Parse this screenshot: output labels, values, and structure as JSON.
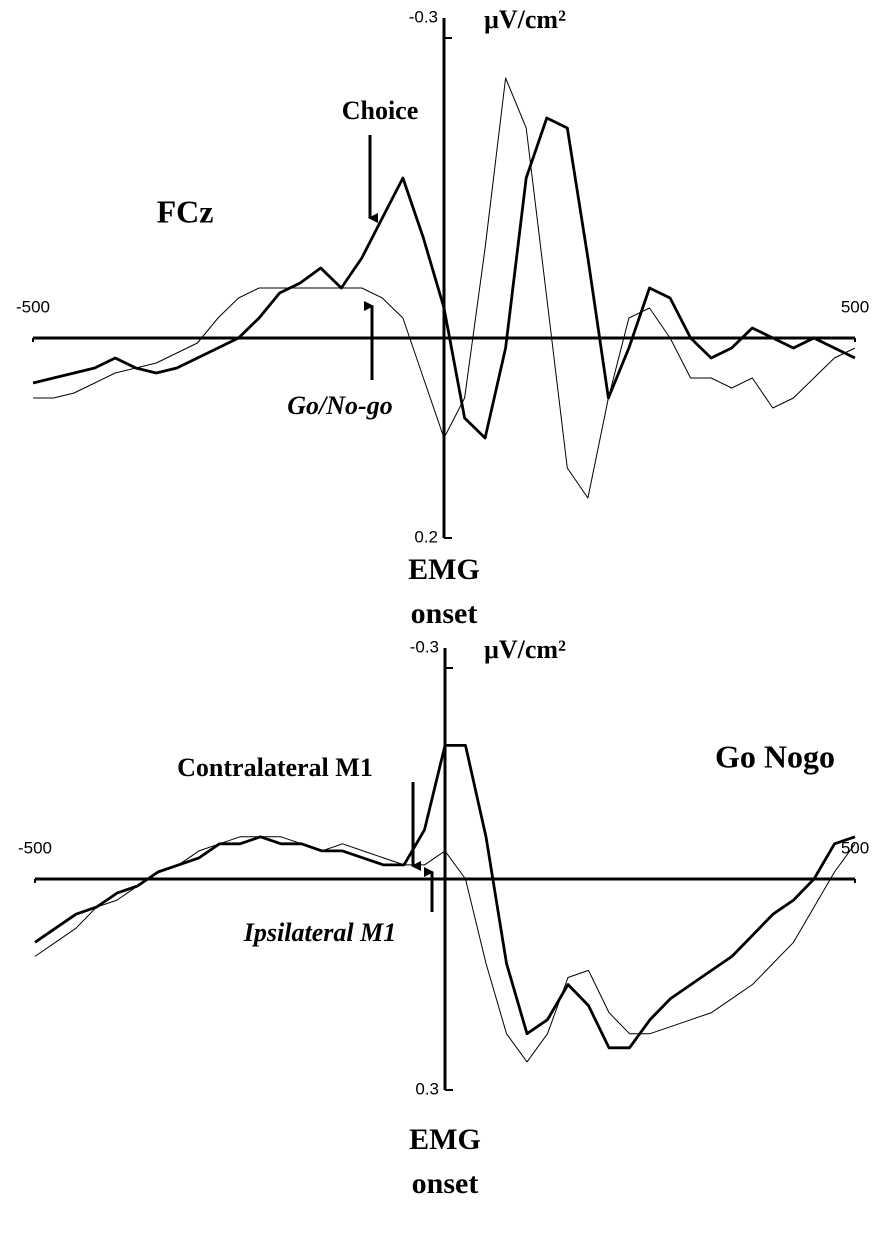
{
  "chart_data": [
    {
      "type": "line",
      "title": "FCz",
      "y_label": "μV/cm²",
      "x_label": "EMG onset",
      "xlim": [
        -500,
        500
      ],
      "xticks": [
        -500,
        500
      ],
      "ylim": [
        -0.3,
        0.2
      ],
      "yticks": [
        -0.3,
        0.2
      ],
      "y_inverted": true,
      "x": [
        -500,
        -475,
        -450,
        -425,
        -400,
        -375,
        -350,
        -325,
        -300,
        -275,
        -250,
        -225,
        -200,
        -175,
        -150,
        -125,
        -100,
        -75,
        -50,
        -25,
        0,
        25,
        50,
        75,
        100,
        125,
        150,
        175,
        200,
        225,
        250,
        275,
        300,
        325,
        350,
        375,
        400,
        425,
        450,
        475,
        500
      ],
      "series": [
        {
          "name": "Choice",
          "color": "#000000",
          "values": [
            0.045,
            0.04,
            0.035,
            0.03,
            0.02,
            0.03,
            0.035,
            0.03,
            0.02,
            0.01,
            0,
            -0.02,
            -0.045,
            -0.055,
            -0.07,
            -0.05,
            -0.08,
            -0.12,
            -0.16,
            -0.1,
            -0.03,
            0.08,
            0.1,
            0.01,
            -0.16,
            -0.22,
            -0.21,
            -0.08,
            0.06,
            0.01,
            -0.05,
            -0.04,
            0,
            0.02,
            0.01,
            -0.01,
            0,
            0.01,
            0,
            0.01,
            0.02
          ]
        },
        {
          "name": "Go/No-go",
          "color": "#000000",
          "values": [
            0.06,
            0.06,
            0.055,
            0.045,
            0.035,
            0.03,
            0.025,
            0.015,
            0.005,
            -0.02,
            -0.04,
            -0.05,
            -0.05,
            -0.05,
            -0.05,
            -0.05,
            -0.05,
            -0.04,
            -0.02,
            0.04,
            0.1,
            0.06,
            -0.09,
            -0.26,
            -0.21,
            -0.04,
            0.13,
            0.16,
            0.06,
            -0.02,
            -0.03,
            0,
            0.04,
            0.04,
            0.05,
            0.04,
            0.07,
            0.06,
            0.04,
            0.02,
            0.01
          ]
        }
      ]
    },
    {
      "type": "line",
      "title": "Go Nogo",
      "y_label": "μV/cm²",
      "x_label": "EMG onset",
      "xlim": [
        -500,
        500
      ],
      "xticks": [
        -500,
        500
      ],
      "ylim": [
        -0.3,
        0.3
      ],
      "yticks": [
        -0.3,
        0.3
      ],
      "y_inverted": true,
      "x": [
        -500,
        -475,
        -450,
        -425,
        -400,
        -375,
        -350,
        -325,
        -300,
        -275,
        -250,
        -225,
        -200,
        -175,
        -150,
        -125,
        -100,
        -75,
        -50,
        -25,
        0,
        25,
        50,
        75,
        100,
        125,
        150,
        175,
        200,
        225,
        250,
        275,
        300,
        325,
        350,
        375,
        400,
        425,
        450,
        475,
        500
      ],
      "series": [
        {
          "name": "Contralateral M1",
          "color": "#000000",
          "values": [
            0.09,
            0.07,
            0.05,
            0.04,
            0.02,
            0.01,
            -0.01,
            -0.02,
            -0.03,
            -0.05,
            -0.05,
            -0.06,
            -0.05,
            -0.05,
            -0.04,
            -0.04,
            -0.03,
            -0.02,
            -0.02,
            -0.07,
            -0.19,
            -0.19,
            -0.06,
            0.12,
            0.22,
            0.2,
            0.15,
            0.18,
            0.24,
            0.24,
            0.2,
            0.17,
            0.15,
            0.13,
            0.11,
            0.08,
            0.05,
            0.03,
            0,
            -0.05,
            -0.06
          ]
        },
        {
          "name": "Ipsilateral M1",
          "color": "#000000",
          "values": [
            0.11,
            0.09,
            0.07,
            0.04,
            0.03,
            0.01,
            -0.01,
            -0.02,
            -0.04,
            -0.05,
            -0.06,
            -0.06,
            -0.06,
            -0.05,
            -0.04,
            -0.05,
            -0.04,
            -0.03,
            -0.02,
            -0.02,
            -0.04,
            0,
            0.12,
            0.22,
            0.26,
            0.22,
            0.14,
            0.13,
            0.19,
            0.22,
            0.22,
            0.21,
            0.2,
            0.19,
            0.17,
            0.15,
            0.12,
            0.09,
            0.04,
            -0.01,
            -0.05
          ]
        }
      ]
    }
  ]
}
